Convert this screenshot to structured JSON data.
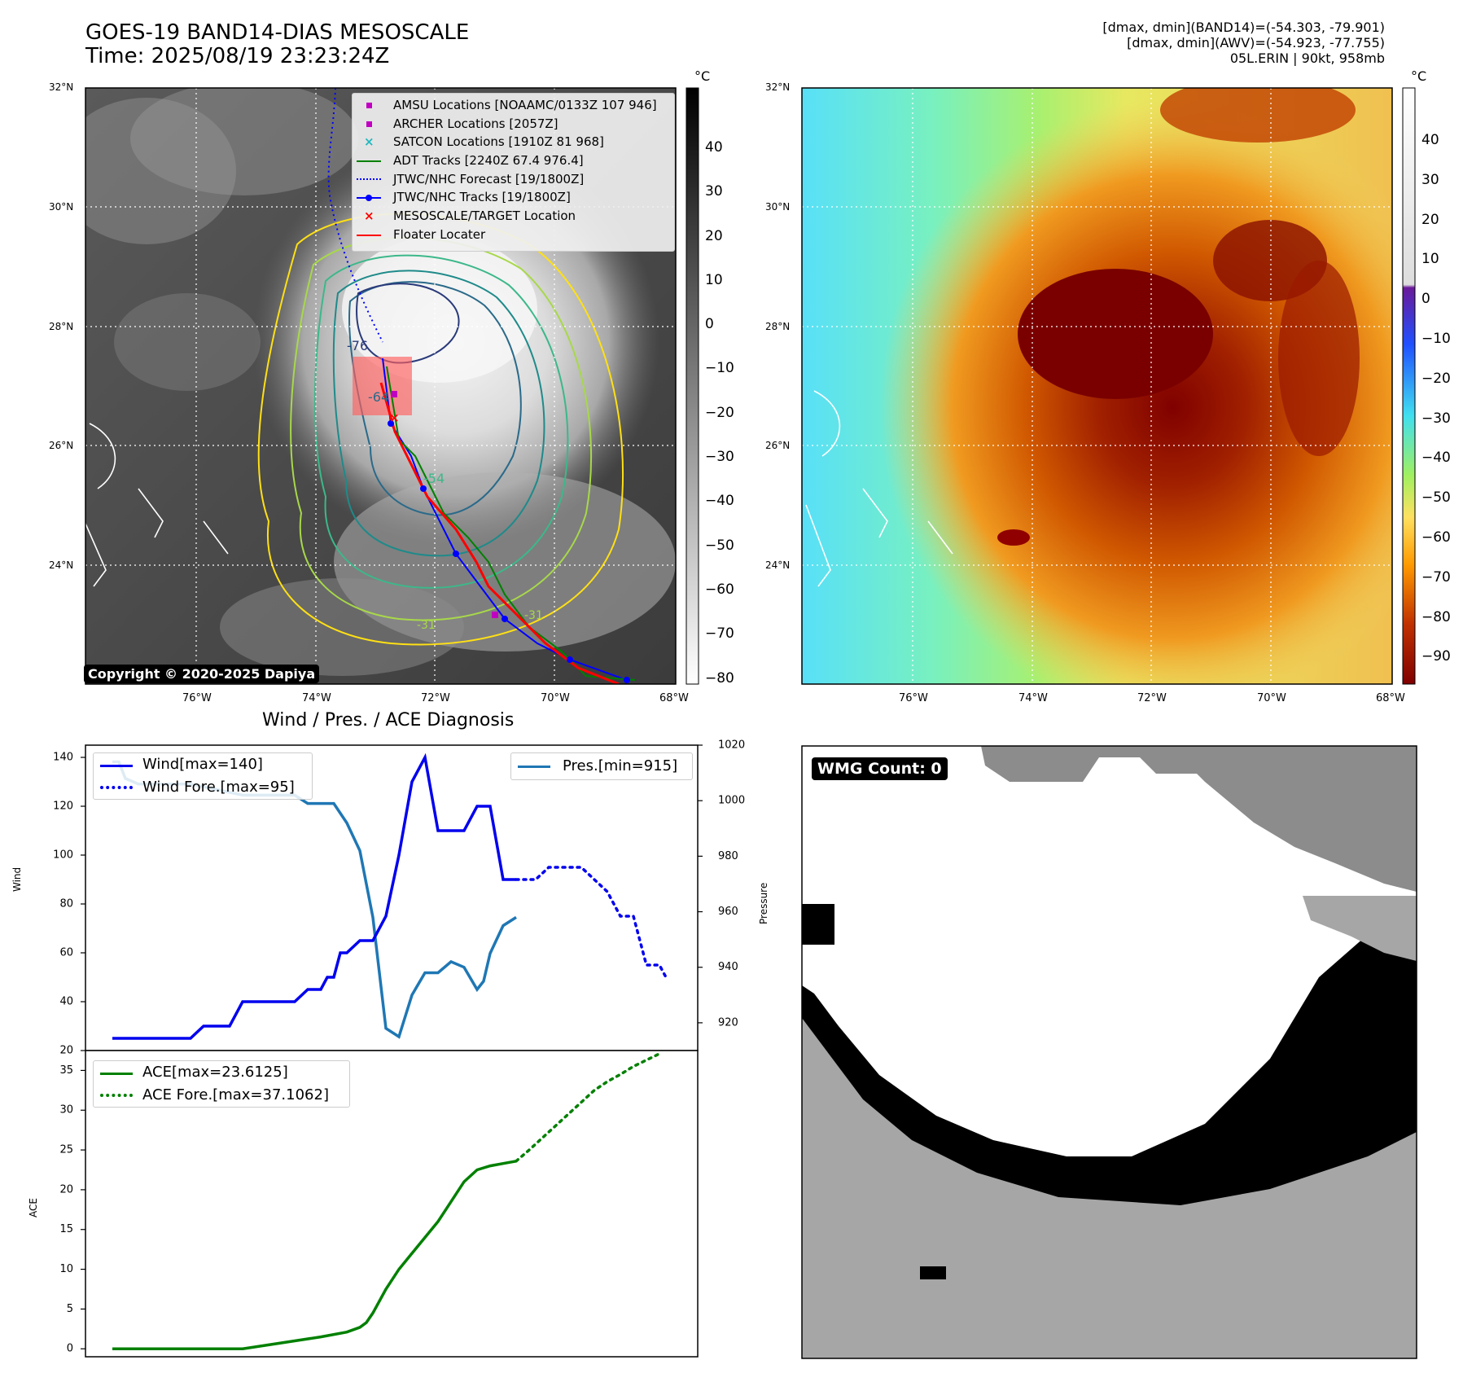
{
  "header": {
    "title_line1": "GOES-19 BAND14-DIAS MESOSCALE",
    "title_line2": "Time: 2025/08/19 23:23:24Z",
    "stats_line1": "[dmax, dmin](BAND14)=(-54.303, -79.901)",
    "stats_line2": "[dmax, dmin](AWV)=(-54.923, -77.755)",
    "stats_line3": "05L.ERIN | 90kt, 958mb"
  },
  "map": {
    "lat_labels": [
      "32°N",
      "30°N",
      "28°N",
      "26°N",
      "24°N"
    ],
    "lon_labels": [
      "76°W",
      "74°W",
      "72°W",
      "70°W",
      "68°W"
    ],
    "copyright": "Copyright © 2020-2025 Dapiya",
    "contour_labels": [
      "-64",
      "-76",
      "-54",
      "-31",
      "-31",
      "-31"
    ],
    "legend": [
      {
        "label": "AMSU Locations [NOAAMC/0133Z 107 946]",
        "color": "#c000c0",
        "marker": "square"
      },
      {
        "label": "ARCHER Locations [2057Z]",
        "color": "#c000c0",
        "marker": "square"
      },
      {
        "label": "SATCON Locations [1910Z 81 968]",
        "color": "#20b8c0",
        "marker": "x"
      },
      {
        "label": "ADT Tracks [2240Z 67.4 976.4]",
        "color": "#008000",
        "marker": "line"
      },
      {
        "label": "JTWC/NHC Forecast [19/1800Z]",
        "color": "#0000ff",
        "marker": "dotted"
      },
      {
        "label": "JTWC/NHC Tracks [19/1800Z]",
        "color": "#0000ff",
        "marker": "line-dot"
      },
      {
        "label": "MESOSCALE/TARGET Location",
        "color": "#ff0000",
        "marker": "x"
      },
      {
        "label": "Floater Locater",
        "color": "#ff0000",
        "marker": "line"
      }
    ]
  },
  "colorbars": {
    "unit": "°C",
    "gray_ticks": [
      "40",
      "30",
      "20",
      "10",
      "0",
      "−10",
      "−20",
      "−30",
      "−40",
      "−50",
      "−60",
      "−70",
      "−80"
    ],
    "color_ticks": [
      "40",
      "30",
      "20",
      "10",
      "0",
      "−10",
      "−20",
      "−30",
      "−40",
      "−50",
      "−60",
      "−70",
      "−80",
      "−90"
    ]
  },
  "wmg": {
    "label": "WMG Count: 0"
  },
  "colors": {
    "wind": "#0000ee",
    "pressure": "#1f77b4",
    "ace": "#008000",
    "red": "#ff0000"
  },
  "chart_data": [
    {
      "type": "line",
      "title": "Wind / Pres. / ACE Diagnosis",
      "xlabel": "",
      "ylabel": "Wind",
      "ylabel_right": "Pressure",
      "ylim": [
        20,
        145
      ],
      "ylim_right": [
        910,
        1020
      ],
      "yticks": [
        "20",
        "40",
        "60",
        "80",
        "100",
        "120",
        "140"
      ],
      "yticks_right": [
        "920",
        "940",
        "960",
        "980",
        "1000",
        "1020"
      ],
      "legend_left": [
        "Wind[max=140]",
        "Wind Fore.[max=95]"
      ],
      "legend_right": [
        "Pres.[min=915]"
      ],
      "series": [
        {
          "name": "Wind[max=140]",
          "style": "solid",
          "x": [
            0,
            8,
            10,
            12,
            14,
            16,
            18,
            20,
            22,
            24,
            26,
            28,
            30,
            31,
            32,
            33,
            34,
            35,
            36,
            38,
            40,
            42,
            44,
            46,
            48,
            50,
            52,
            54,
            56,
            58,
            60,
            62
          ],
          "values": [
            25,
            25,
            25,
            25,
            30,
            30,
            30,
            40,
            40,
            40,
            40,
            40,
            45,
            45,
            45,
            50,
            50,
            60,
            60,
            65,
            65,
            75,
            100,
            130,
            140,
            110,
            110,
            110,
            120,
            120,
            90,
            90
          ]
        },
        {
          "name": "Wind Fore.[max=95]",
          "style": "dotted",
          "x": [
            62,
            65,
            67,
            70,
            72,
            74,
            76,
            78,
            80,
            82,
            84,
            85
          ],
          "values": [
            90,
            90,
            95,
            95,
            95,
            90,
            85,
            75,
            75,
            55,
            55,
            50
          ]
        },
        {
          "name": "Pres.[min=915]",
          "style": "solid",
          "axis": "right",
          "x": [
            0,
            1,
            2,
            4,
            8,
            12,
            16,
            20,
            24,
            28,
            30,
            32,
            34,
            36,
            38,
            40,
            42,
            44,
            46,
            48,
            50,
            52,
            54,
            56,
            57,
            58,
            60,
            62
          ],
          "values": [
            1014,
            1014,
            1008,
            1006,
            1006,
            1006,
            1004,
            1002,
            1002,
            1002,
            999,
            999,
            999,
            992,
            982,
            958,
            918,
            915,
            930,
            938,
            938,
            942,
            940,
            932,
            935,
            945,
            955,
            958
          ]
        }
      ]
    },
    {
      "type": "line",
      "title": "",
      "xlabel": "",
      "ylabel": "ACE",
      "ylim": [
        -1,
        37.5
      ],
      "yticks": [
        "0",
        "5",
        "10",
        "15",
        "20",
        "25",
        "30",
        "35"
      ],
      "legend": [
        "ACE[max=23.6125]",
        "ACE Fore.[max=37.1062]"
      ],
      "series": [
        {
          "name": "ACE[max=23.6125]",
          "style": "solid",
          "x": [
            0,
            10,
            16,
            20,
            24,
            28,
            32,
            36,
            38,
            39,
            40,
            42,
            44,
            46,
            48,
            50,
            52,
            54,
            56,
            58,
            60,
            62
          ],
          "values": [
            0,
            0,
            0,
            0,
            0.5,
            1.0,
            1.5,
            2.1,
            2.7,
            3.3,
            4.5,
            7.5,
            10,
            12,
            14,
            16,
            18.5,
            21,
            22.5,
            23,
            23.3,
            23.6
          ]
        },
        {
          "name": "ACE Fore.[max=37.1062]",
          "style": "dotted",
          "x": [
            62,
            64,
            66,
            68,
            70,
            72,
            74,
            76,
            78,
            80,
            82,
            84
          ],
          "values": [
            23.6,
            25,
            26.5,
            28,
            29.5,
            31,
            32.5,
            33.6,
            34.5,
            35.5,
            36.3,
            37.1
          ]
        }
      ]
    }
  ]
}
